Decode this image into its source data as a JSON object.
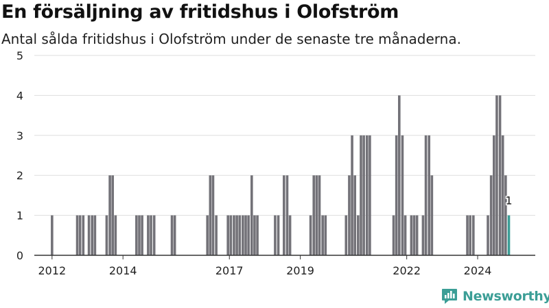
{
  "title": "En försäljning av fritidshus i Olofström",
  "subtitle": "Antal sålda fritidshus i Olofström under de senaste tre månaderna.",
  "brand": {
    "name": "Newsworthy",
    "color": "#3b9e96"
  },
  "colors": {
    "bar": "#737278",
    "highlight": "#3b9e96",
    "grid": "#dddddd",
    "axis": "#333333"
  },
  "chart_data": {
    "type": "bar",
    "ylim": [
      0,
      5
    ],
    "yticks": [
      0,
      1,
      2,
      3,
      4,
      5
    ],
    "xlim": [
      2011.5,
      2025.625
    ],
    "xticks": [
      "2012",
      "2014",
      "2017",
      "2019",
      "2022",
      "2024"
    ],
    "grid": true,
    "last_label": "1",
    "bars": [
      {
        "x": 2012.0,
        "v": 1
      },
      {
        "x": 2012.71,
        "v": 1
      },
      {
        "x": 2012.79,
        "v": 1
      },
      {
        "x": 2012.88,
        "v": 1
      },
      {
        "x": 2013.04,
        "v": 1
      },
      {
        "x": 2013.13,
        "v": 1
      },
      {
        "x": 2013.21,
        "v": 1
      },
      {
        "x": 2013.54,
        "v": 1
      },
      {
        "x": 2013.63,
        "v": 2
      },
      {
        "x": 2013.71,
        "v": 2
      },
      {
        "x": 2013.79,
        "v": 1
      },
      {
        "x": 2014.38,
        "v": 1
      },
      {
        "x": 2014.46,
        "v": 1
      },
      {
        "x": 2014.54,
        "v": 1
      },
      {
        "x": 2014.71,
        "v": 1
      },
      {
        "x": 2014.79,
        "v": 1
      },
      {
        "x": 2014.88,
        "v": 1
      },
      {
        "x": 2015.38,
        "v": 1
      },
      {
        "x": 2015.46,
        "v": 1
      },
      {
        "x": 2016.38,
        "v": 1
      },
      {
        "x": 2016.46,
        "v": 2
      },
      {
        "x": 2016.54,
        "v": 2
      },
      {
        "x": 2016.63,
        "v": 1
      },
      {
        "x": 2016.96,
        "v": 1
      },
      {
        "x": 2017.04,
        "v": 1
      },
      {
        "x": 2017.13,
        "v": 1
      },
      {
        "x": 2017.21,
        "v": 1
      },
      {
        "x": 2017.29,
        "v": 1
      },
      {
        "x": 2017.38,
        "v": 1
      },
      {
        "x": 2017.46,
        "v": 1
      },
      {
        "x": 2017.54,
        "v": 1
      },
      {
        "x": 2017.63,
        "v": 2
      },
      {
        "x": 2017.71,
        "v": 1
      },
      {
        "x": 2017.79,
        "v": 1
      },
      {
        "x": 2018.29,
        "v": 1
      },
      {
        "x": 2018.38,
        "v": 1
      },
      {
        "x": 2018.54,
        "v": 2
      },
      {
        "x": 2018.63,
        "v": 2
      },
      {
        "x": 2018.71,
        "v": 1
      },
      {
        "x": 2019.29,
        "v": 1
      },
      {
        "x": 2019.38,
        "v": 2
      },
      {
        "x": 2019.46,
        "v": 2
      },
      {
        "x": 2019.54,
        "v": 2
      },
      {
        "x": 2019.63,
        "v": 1
      },
      {
        "x": 2019.71,
        "v": 1
      },
      {
        "x": 2020.29,
        "v": 1
      },
      {
        "x": 2020.38,
        "v": 2
      },
      {
        "x": 2020.46,
        "v": 3
      },
      {
        "x": 2020.54,
        "v": 2
      },
      {
        "x": 2020.63,
        "v": 1
      },
      {
        "x": 2020.71,
        "v": 3
      },
      {
        "x": 2020.79,
        "v": 3
      },
      {
        "x": 2020.88,
        "v": 3
      },
      {
        "x": 2020.96,
        "v": 3
      },
      {
        "x": 2021.63,
        "v": 1
      },
      {
        "x": 2021.71,
        "v": 3
      },
      {
        "x": 2021.79,
        "v": 4
      },
      {
        "x": 2021.88,
        "v": 3
      },
      {
        "x": 2021.96,
        "v": 1
      },
      {
        "x": 2022.13,
        "v": 1
      },
      {
        "x": 2022.21,
        "v": 1
      },
      {
        "x": 2022.29,
        "v": 1
      },
      {
        "x": 2022.46,
        "v": 1
      },
      {
        "x": 2022.54,
        "v": 3
      },
      {
        "x": 2022.63,
        "v": 3
      },
      {
        "x": 2022.71,
        "v": 2
      },
      {
        "x": 2023.71,
        "v": 1
      },
      {
        "x": 2023.79,
        "v": 1
      },
      {
        "x": 2023.88,
        "v": 1
      },
      {
        "x": 2024.29,
        "v": 1
      },
      {
        "x": 2024.38,
        "v": 2
      },
      {
        "x": 2024.46,
        "v": 3
      },
      {
        "x": 2024.54,
        "v": 4
      },
      {
        "x": 2024.63,
        "v": 4
      },
      {
        "x": 2024.71,
        "v": 3
      },
      {
        "x": 2024.79,
        "v": 2
      },
      {
        "x": 2024.88,
        "v": 1
      }
    ]
  }
}
